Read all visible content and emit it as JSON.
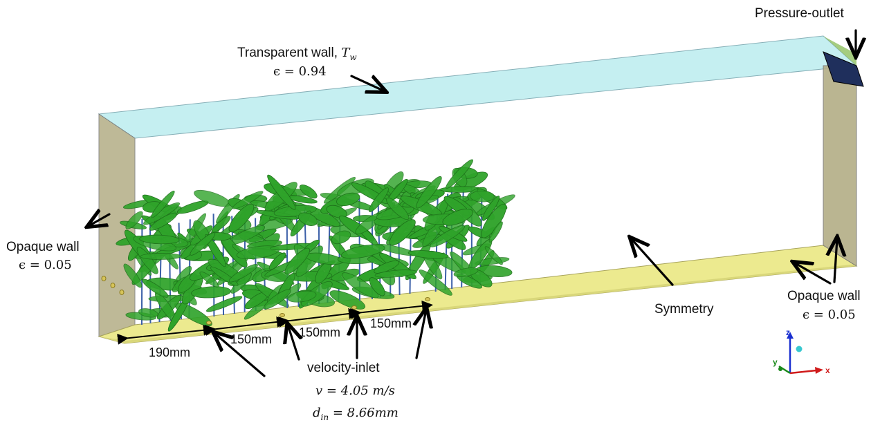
{
  "labels": {
    "pressure_outlet": "Pressure-outlet",
    "transparent_wall": {
      "title": "Transparent wall, ",
      "symbol": "T",
      "subscript": "w",
      "emissivity": "ϵ = 0.94"
    },
    "opaque_wall_left": {
      "title": "Opaque wall",
      "emissivity": "ϵ = 0.05"
    },
    "opaque_wall_right": {
      "title": "Opaque wall",
      "emissivity": "ϵ = 0.05"
    },
    "symmetry": "Symmetry",
    "velocity_inlet": {
      "title": "velocity-inlet",
      "velocity": "v = 4.05 m/s",
      "diameter_symbol": "d",
      "diameter_subscript": "in",
      "diameter_value": " = 8.66mm"
    }
  },
  "dimensions": [
    "190mm",
    "150mm",
    "150mm",
    "150mm"
  ],
  "axes": {
    "z": "z",
    "x": "x",
    "y": "y"
  },
  "colors": {
    "transparent_wall": "#bfeef0",
    "opaque_wall": "#b3ad86",
    "floor": "#ecea8f",
    "plant_leaf": "#2fa32a",
    "plant_stem": "#3b5fa8",
    "outlet": "#1f2f5c",
    "axis_z": "#1a2fd0",
    "axis_x": "#d01a1a",
    "axis_y": "#1a8a1a"
  }
}
